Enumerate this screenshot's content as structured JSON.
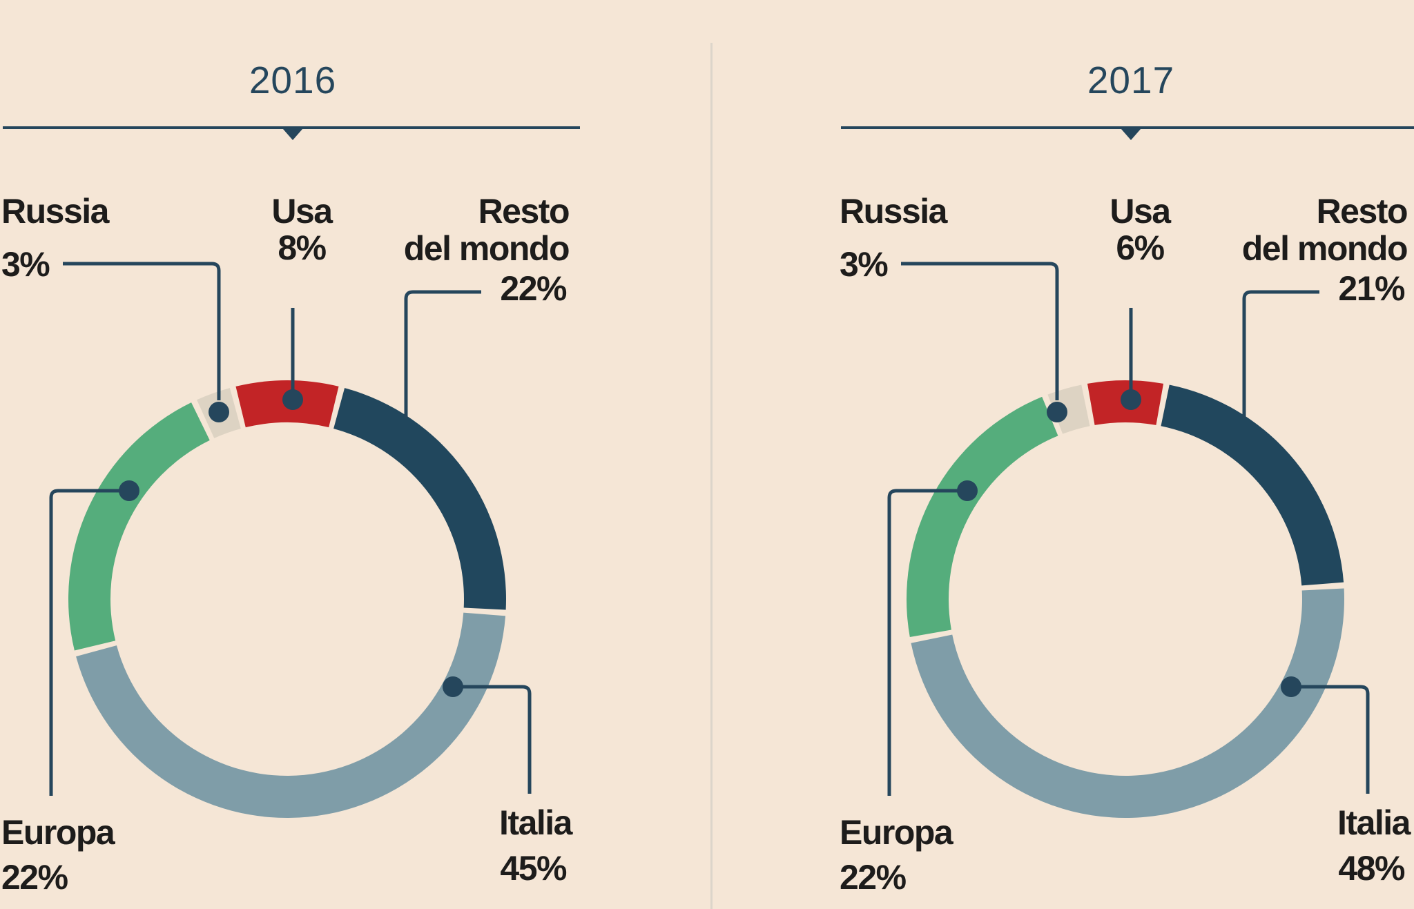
{
  "background_color": "#f5e6d6",
  "colors": {
    "accent_navy": "#25465c",
    "label_text": "#1d1c1b",
    "divider": "#dcd5ca"
  },
  "chart_data": [
    {
      "type": "donut",
      "title": "2016",
      "unit": "%",
      "rotation_deg": -25.2,
      "legend_position": "around-chart-with-leader-lines",
      "slices": [
        {
          "label": "Russia",
          "value": 3,
          "pct_label": "3%",
          "color": "#ddd3c3"
        },
        {
          "label": "Usa",
          "value": 8,
          "pct_label": "8%",
          "color": "#c22426"
        },
        {
          "label": "Resto del mondo",
          "label_line1": "Resto",
          "label_line2": "del mondo",
          "value": 22,
          "pct_label": "22%",
          "color": "#21475d"
        },
        {
          "label": "Italia",
          "value": 45,
          "pct_label": "45%",
          "color": "#7f9da8"
        },
        {
          "label": "Europa",
          "value": 22,
          "pct_label": "22%",
          "color": "#55ad7c"
        }
      ]
    },
    {
      "type": "donut",
      "title": "2017",
      "unit": "%",
      "rotation_deg": -21.6,
      "legend_position": "around-chart-with-leader-lines",
      "slices": [
        {
          "label": "Russia",
          "value": 3,
          "pct_label": "3%",
          "color": "#ddd3c3"
        },
        {
          "label": "Usa",
          "value": 6,
          "pct_label": "6%",
          "color": "#c22426"
        },
        {
          "label": "Resto del mondo",
          "label_line1": "Resto",
          "label_line2": "del mondo",
          "value": 21,
          "pct_label": "21%",
          "color": "#21475d"
        },
        {
          "label": "Italia",
          "value": 48,
          "pct_label": "48%",
          "color": "#7f9da8"
        },
        {
          "label": "Europa",
          "value": 22,
          "pct_label": "22%",
          "color": "#55ad7c"
        }
      ]
    }
  ]
}
